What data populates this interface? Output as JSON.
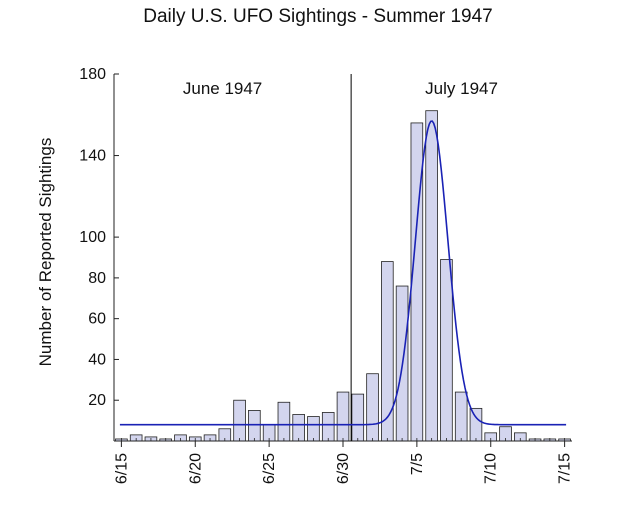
{
  "chart_data": {
    "type": "bar",
    "title": "Daily U.S. UFO Sightings - Summer 1947",
    "ylabel": "Number of Reported Sightings",
    "xlabel": "",
    "ylim": [
      0,
      180
    ],
    "y_ticks": [
      20,
      40,
      60,
      80,
      100,
      140,
      180
    ],
    "x_ticks": [
      "6/15",
      "6/20",
      "6/25",
      "6/30",
      "7/5",
      "7/10",
      "7/15"
    ],
    "categories": [
      "6/15",
      "6/16",
      "6/17",
      "6/18",
      "6/19",
      "6/20",
      "6/21",
      "6/22",
      "6/23",
      "6/24",
      "6/25",
      "6/26",
      "6/27",
      "6/28",
      "6/29",
      "6/30",
      "7/1",
      "7/2",
      "7/3",
      "7/4",
      "7/5",
      "7/6",
      "7/7",
      "7/8",
      "7/9",
      "7/10",
      "7/11",
      "7/12",
      "7/13",
      "7/14",
      "7/15"
    ],
    "values": [
      1,
      3,
      2,
      1,
      3,
      2,
      3,
      6,
      20,
      15,
      8,
      19,
      13,
      12,
      14,
      24,
      23,
      33,
      88,
      76,
      156,
      162,
      89,
      24,
      16,
      4,
      7,
      4,
      1,
      1,
      1
    ],
    "period_labels": [
      "June 1947",
      "July 1947"
    ],
    "period_divider_at": "6/30",
    "fit_curve": {
      "type": "gaussian",
      "baseline": 8,
      "peak": 157,
      "peak_at": "7/6",
      "sigma_days": 1.1
    },
    "colors": {
      "bar_fill": "#d3d5ee",
      "bar_stroke": "#222222",
      "curve": "#1a22b5",
      "divider": "#000000"
    }
  }
}
